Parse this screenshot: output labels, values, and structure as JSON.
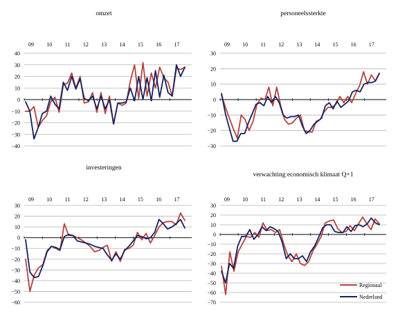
{
  "colors": {
    "regional": "#b5413d",
    "national": "#13215e",
    "grid": "#b3b3b3",
    "axis": "#000000"
  },
  "legend": {
    "regional": "Regionaal",
    "national": "Nederland"
  },
  "chart_data": [
    {
      "type": "line",
      "title": "omzet",
      "year_labels": [
        "09",
        "10",
        "11",
        "12",
        "13",
        "14",
        "15",
        "16",
        "17"
      ],
      "y_ticks": [
        "40",
        "30",
        "20",
        "10",
        "0",
        "−10",
        "−20",
        "−30",
        "−40"
      ],
      "ylim": [
        -40,
        40
      ],
      "x_quarters": 36,
      "series": [
        {
          "name": "Regionaal",
          "values": [
            -10,
            -10,
            -6,
            -24,
            -18,
            -14,
            -2,
            2,
            -11,
            13,
            14,
            23,
            10,
            20,
            -3,
            -2,
            6,
            -11,
            6,
            -12,
            3,
            -21,
            -3,
            -5,
            -3,
            16,
            30,
            1,
            32,
            3,
            23,
            10,
            28,
            19,
            15,
            3,
            27,
            26,
            28
          ]
        },
        {
          "name": "Nederland",
          "values": [
            -2,
            -10,
            -34,
            -24,
            -12,
            -10,
            3,
            -4,
            -8,
            15,
            8,
            20,
            9,
            18,
            1,
            -1,
            3,
            -8,
            3,
            -8,
            0,
            -21,
            -3,
            -3,
            -2,
            10,
            -1,
            20,
            0,
            19,
            -1,
            25,
            2,
            21,
            6,
            3,
            30,
            20,
            28
          ]
        }
      ]
    },
    {
      "type": "line",
      "title": "personeelssterkte",
      "year_labels": [
        "09",
        "10",
        "11",
        "12",
        "13",
        "14",
        "15",
        "16",
        "17"
      ],
      "y_ticks": [
        "30",
        "20",
        "10",
        "0",
        "−10",
        "−20",
        "−30"
      ],
      "ylim": [
        -30,
        30
      ],
      "x_quarters": 36,
      "series": [
        {
          "name": "Regionaal",
          "values": [
            3,
            -5,
            -12,
            -19,
            -25,
            -10,
            -13,
            -20,
            -14,
            -3,
            1,
            0,
            8,
            -4,
            8,
            -4,
            -13,
            -16,
            -15,
            -12,
            -10,
            -20,
            -21,
            -21,
            -14,
            -13,
            -8,
            -5,
            -5,
            -3,
            2,
            -2,
            2,
            -2,
            4,
            9,
            18,
            10,
            16,
            12,
            17
          ]
        },
        {
          "name": "Nederland",
          "values": [
            4,
            -9,
            -18,
            -27,
            -27,
            -22,
            -22,
            -15,
            -9,
            -3,
            -2,
            -4,
            2,
            -2,
            2,
            -2,
            -10,
            -12,
            -11,
            -11,
            -10,
            -17,
            -22,
            -20,
            -16,
            -14,
            -12,
            -4,
            -2,
            -6,
            -1,
            -5,
            -3,
            -1,
            5,
            6,
            5,
            10,
            11,
            11,
            12,
            17
          ]
        }
      ]
    },
    {
      "type": "line",
      "title": "investeringen",
      "year_labels": [
        "09",
        "10",
        "11",
        "12",
        "13",
        "14",
        "15",
        "16",
        "17"
      ],
      "y_ticks": [
        "30",
        "20",
        "10",
        "0",
        "−10",
        "−20",
        "−30",
        "−40",
        "−50",
        "−60"
      ],
      "ylim": [
        -60,
        30
      ],
      "x_quarters": 36,
      "series": [
        {
          "name": "Regionaal",
          "values": [
            -20,
            -50,
            -35,
            -28,
            -25,
            -12,
            -8,
            -10,
            -12,
            13,
            2,
            2,
            0,
            -2,
            -5,
            -8,
            -13,
            -12,
            -9,
            -7,
            -22,
            -13,
            -22,
            -11,
            -10,
            -7,
            5,
            -2,
            4,
            -5,
            2,
            10,
            14,
            15,
            15,
            12,
            23,
            16
          ]
        },
        {
          "name": "Nederland",
          "values": [
            -2,
            -32,
            -37,
            -36,
            -26,
            -13,
            -8,
            -9,
            -11,
            1,
            3,
            2,
            -3,
            -4,
            -5,
            -6,
            -8,
            -9,
            -10,
            -16,
            -21,
            -15,
            -20,
            -12,
            -8,
            -3,
            2,
            1,
            -1,
            0,
            5,
            17,
            13,
            8,
            10,
            13,
            17,
            9
          ]
        }
      ]
    },
    {
      "type": "line",
      "title": "verwachting economisch klimaat Q+1",
      "year_labels": [
        "09",
        "10",
        "11",
        "12",
        "13",
        "14",
        "15",
        "16",
        "17"
      ],
      "y_ticks": [
        "30",
        "20",
        "10",
        "0",
        "−10",
        "−20",
        "−30",
        "−40",
        "−50",
        "−60",
        "−70"
      ],
      "ylim": [
        -70,
        30
      ],
      "x_quarters": 36,
      "legend_position": "bottom-right",
      "series": [
        {
          "name": "Regionaal",
          "values": [
            -33,
            -62,
            -18,
            -38,
            -18,
            -10,
            -2,
            -3,
            2,
            -3,
            12,
            4,
            5,
            2,
            5,
            -10,
            -22,
            -28,
            -20,
            -30,
            -32,
            -28,
            -17,
            -10,
            -2,
            12,
            14,
            15,
            6,
            2,
            3,
            9,
            4,
            11,
            18,
            11,
            5,
            16,
            11
          ]
        },
        {
          "name": "Nederland",
          "values": [
            -38,
            -50,
            -30,
            -35,
            -12,
            -2,
            -2,
            5,
            -5,
            0,
            8,
            4,
            8,
            6,
            3,
            -8,
            -25,
            -20,
            -25,
            -25,
            -22,
            -28,
            -18,
            -12,
            -3,
            7,
            10,
            10,
            3,
            2,
            2,
            8,
            3,
            9,
            10,
            8,
            11,
            17,
            12,
            10
          ]
        }
      ]
    }
  ]
}
